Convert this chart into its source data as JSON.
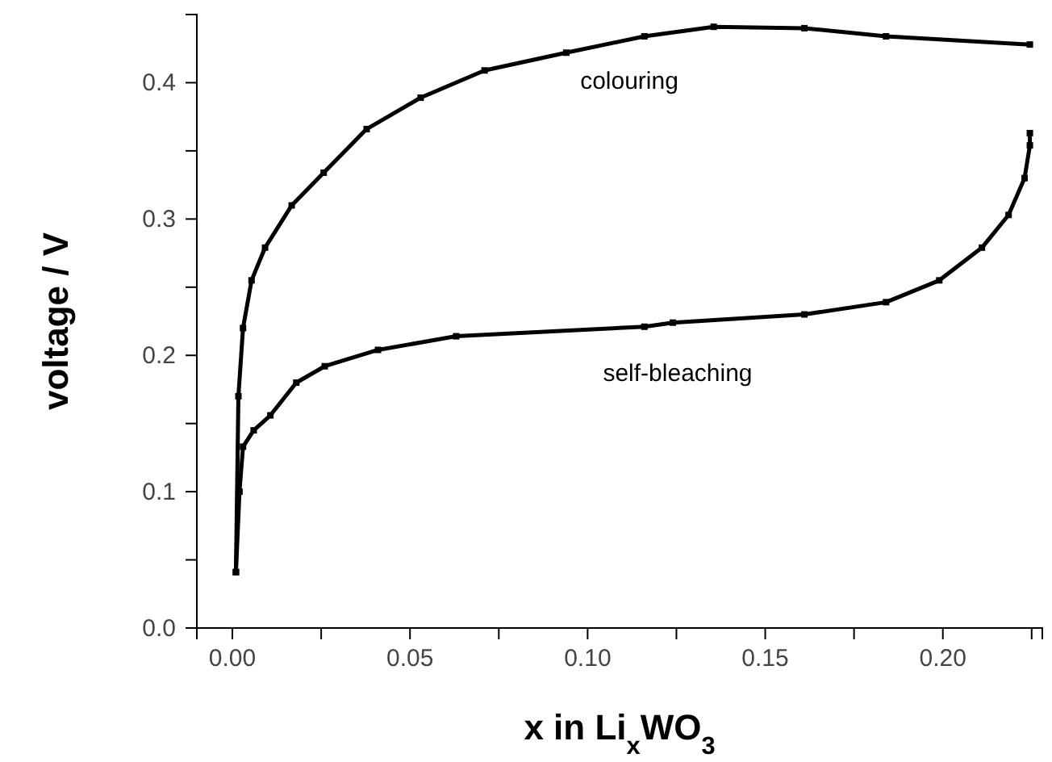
{
  "chart_data": {
    "type": "line",
    "xlabel": "x in Li$_{x}$WO$_{3}$",
    "ylabel": "voltage / V",
    "xlim": [
      -0.01,
      0.228
    ],
    "ylim": [
      0,
      0.45
    ],
    "xticks": [
      {
        "value": 0,
        "label": "0.00"
      },
      {
        "value": 0.025,
        "label": null
      },
      {
        "value": 0.05,
        "label": "0.05"
      },
      {
        "value": 0.075,
        "label": null
      },
      {
        "value": 0.1,
        "label": "0.10"
      },
      {
        "value": 0.125,
        "label": null
      },
      {
        "value": 0.15,
        "label": "0.15"
      },
      {
        "value": 0.175,
        "label": null
      },
      {
        "value": 0.2,
        "label": "0.20"
      },
      {
        "value": 0.225,
        "label": null
      }
    ],
    "yticks": [
      {
        "value": 0,
        "label": "0.0"
      },
      {
        "value": 0.05,
        "label": null
      },
      {
        "value": 0.1,
        "label": "0.1"
      },
      {
        "value": 0.15,
        "label": null
      },
      {
        "value": 0.2,
        "label": "0.2"
      },
      {
        "value": 0.25,
        "label": null
      },
      {
        "value": 0.3,
        "label": "0.3"
      },
      {
        "value": 0.35,
        "label": null
      },
      {
        "value": 0.4,
        "label": "0.4"
      },
      {
        "value": 0.45,
        "label": null
      }
    ],
    "grid": false,
    "marker": "square",
    "line_style": "solid",
    "series": [
      {
        "color": "#000000",
        "x": [
          0.001,
          0.0017,
          0.003,
          0.0054,
          0.0092,
          0.0167,
          0.0257,
          0.0378,
          0.053,
          0.071,
          0.094,
          0.116,
          0.1355,
          0.161,
          0.184,
          0.2245
        ],
        "values": [
          0.041,
          0.17,
          0.22,
          0.255,
          0.279,
          0.31,
          0.334,
          0.366,
          0.389,
          0.409,
          0.422,
          0.434,
          0.441,
          0.44,
          0.434,
          0.428
        ]
      },
      {
        "color": "#000000",
        "x": [
          0.001,
          0.002,
          0.003,
          0.006,
          0.0107,
          0.018,
          0.026,
          0.041,
          0.063,
          0.116,
          0.124,
          0.161,
          0.184,
          0.199,
          0.211,
          0.2185,
          0.223,
          0.2245,
          0.2245
        ],
        "values": [
          0.041,
          0.1,
          0.133,
          0.145,
          0.156,
          0.18,
          0.192,
          0.204,
          0.214,
          0.221,
          0.224,
          0.23,
          0.239,
          0.255,
          0.279,
          0.303,
          0.33,
          0.354,
          0.363
        ]
      }
    ],
    "annotations": [
      "colouring",
      "self-bleaching"
    ]
  }
}
